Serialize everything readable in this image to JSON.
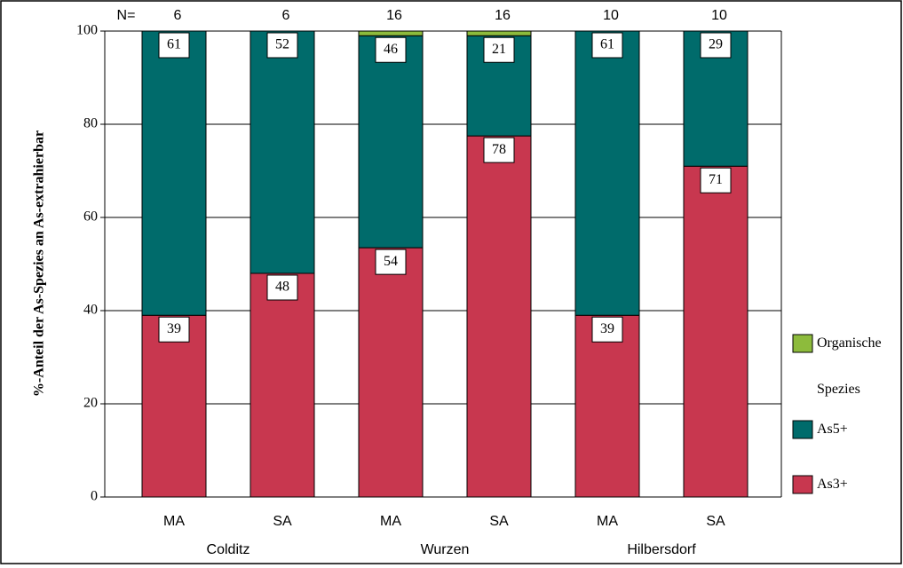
{
  "chart_data": {
    "type": "bar",
    "stacked": true,
    "y_label": "%-Anteil der As-Spezies an As-extrahierbar",
    "categories": [
      "MA",
      "SA",
      "MA",
      "SA",
      "MA",
      "SA"
    ],
    "groups": [
      "Colditz",
      "Wurzen",
      "Hilbersdorf"
    ],
    "n_label": "N=",
    "n": [
      6,
      6,
      16,
      16,
      10,
      10
    ],
    "ylim": [
      0,
      100
    ],
    "yticks": [
      0,
      20,
      40,
      60,
      80,
      100
    ],
    "grid": true,
    "series": [
      {
        "name": "As3+",
        "color": "#c8374f",
        "values": [
          39,
          48,
          53.5,
          77.5,
          39,
          71
        ],
        "value_labels": [
          "39",
          "48",
          "54",
          "78",
          "39",
          "71"
        ]
      },
      {
        "name": "As5+",
        "color": "#006b6b",
        "values": [
          61,
          52,
          45.5,
          21.5,
          61,
          29
        ],
        "value_labels": [
          "61",
          "52",
          "46",
          "21",
          "61",
          "29"
        ]
      },
      {
        "name": "Organische Spezies",
        "color": "#8dbb3c",
        "values": [
          0,
          0,
          1,
          1,
          0,
          0
        ]
      }
    ]
  }
}
